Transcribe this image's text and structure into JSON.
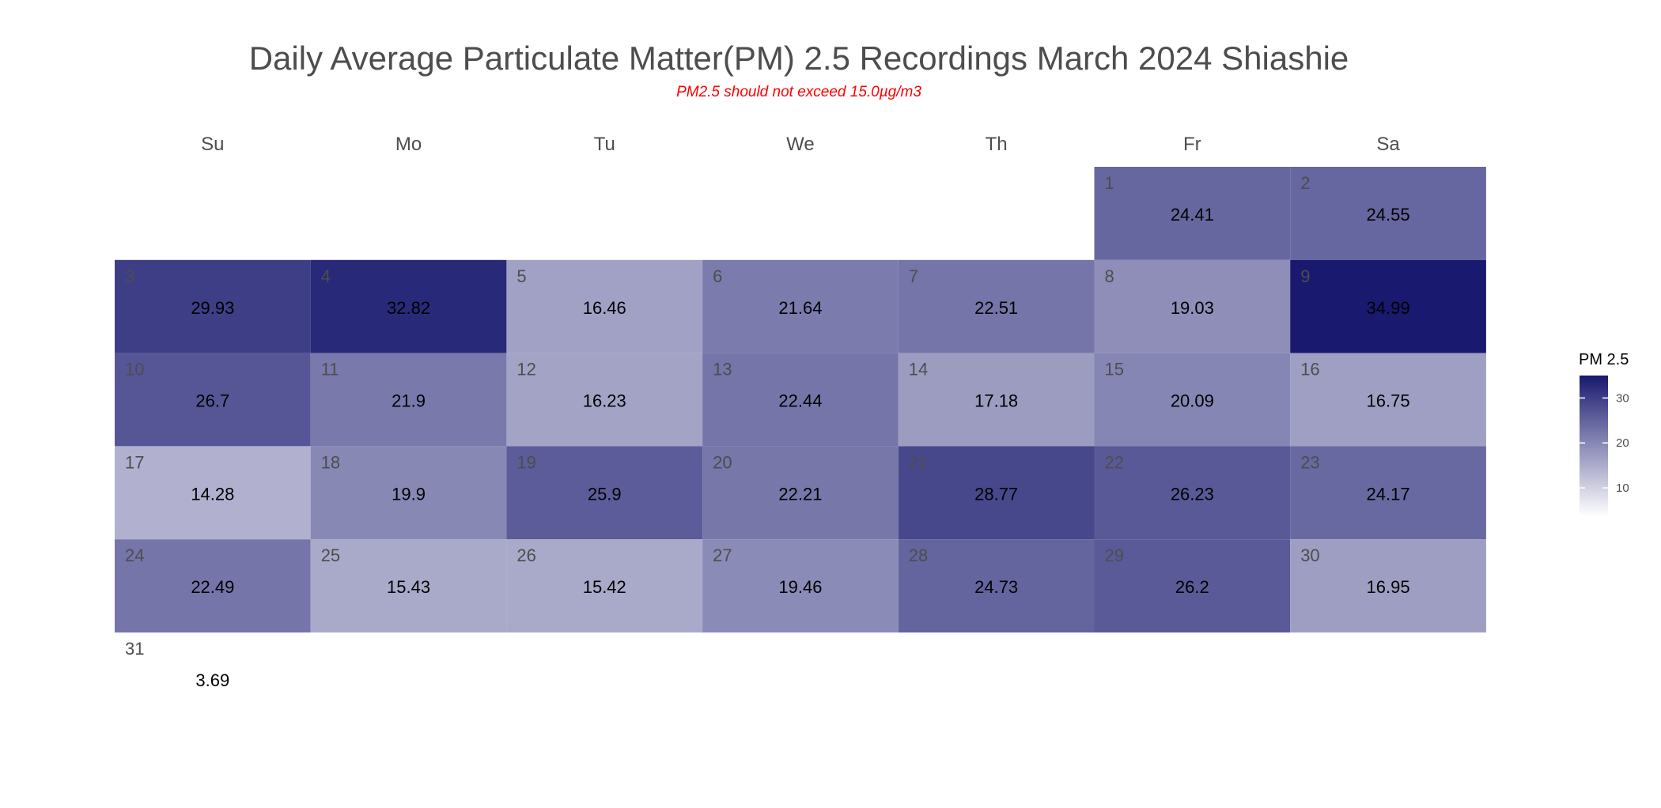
{
  "chart_data": {
    "type": "heatmap",
    "title": "Daily Average Particulate Matter(PM) 2.5 Recordings March 2024 Shiashie",
    "subtitle": "PM2.5 should not exceed 15.0µg/m3",
    "weekdays": [
      "Su",
      "Mo",
      "Tu",
      "We",
      "Th",
      "Fr",
      "Sa"
    ],
    "first_weekday_index": 5,
    "days": [
      {
        "day": "1",
        "value": 24.41,
        "label": "24.41"
      },
      {
        "day": "2",
        "value": 24.55,
        "label": "24.55"
      },
      {
        "day": "3",
        "value": 29.93,
        "label": "29.93"
      },
      {
        "day": "4",
        "value": 32.82,
        "label": "32.82"
      },
      {
        "day": "5",
        "value": 16.46,
        "label": "16.46"
      },
      {
        "day": "6",
        "value": 21.64,
        "label": "21.64"
      },
      {
        "day": "7",
        "value": 22.51,
        "label": "22.51"
      },
      {
        "day": "8",
        "value": 19.03,
        "label": "19.03"
      },
      {
        "day": "9",
        "value": 34.99,
        "label": "34.99"
      },
      {
        "day": "10",
        "value": 26.7,
        "label": "26.7"
      },
      {
        "day": "11",
        "value": 21.9,
        "label": "21.9"
      },
      {
        "day": "12",
        "value": 16.23,
        "label": "16.23"
      },
      {
        "day": "13",
        "value": 22.44,
        "label": "22.44"
      },
      {
        "day": "14",
        "value": 17.18,
        "label": "17.18"
      },
      {
        "day": "15",
        "value": 20.09,
        "label": "20.09"
      },
      {
        "day": "16",
        "value": 16.75,
        "label": "16.75"
      },
      {
        "day": "17",
        "value": 14.28,
        "label": "14.28"
      },
      {
        "day": "18",
        "value": 19.9,
        "label": "19.9"
      },
      {
        "day": "19",
        "value": 25.9,
        "label": "25.9"
      },
      {
        "day": "20",
        "value": 22.21,
        "label": "22.21"
      },
      {
        "day": "21",
        "value": 28.77,
        "label": "28.77"
      },
      {
        "day": "22",
        "value": 26.23,
        "label": "26.23"
      },
      {
        "day": "23",
        "value": 24.17,
        "label": "24.17"
      },
      {
        "day": "24",
        "value": 22.49,
        "label": "22.49"
      },
      {
        "day": "25",
        "value": 15.43,
        "label": "15.43"
      },
      {
        "day": "26",
        "value": 15.42,
        "label": "15.42"
      },
      {
        "day": "27",
        "value": 19.46,
        "label": "19.46"
      },
      {
        "day": "28",
        "value": 24.73,
        "label": "24.73"
      },
      {
        "day": "29",
        "value": 26.2,
        "label": "26.2"
      },
      {
        "day": "30",
        "value": 16.95,
        "label": "16.95"
      },
      {
        "day": "31",
        "value": 3.69,
        "label": "3.69"
      }
    ],
    "legend": {
      "title": "PM 2.5",
      "placement": "right",
      "range": [
        3.69,
        34.99
      ],
      "ticks": [
        {
          "value": 10,
          "label": "10"
        },
        {
          "value": 20,
          "label": "20"
        },
        {
          "value": 30,
          "label": "30"
        }
      ]
    },
    "color_scale": {
      "low": "#ffffff",
      "high": "#191970"
    },
    "grid": false
  }
}
